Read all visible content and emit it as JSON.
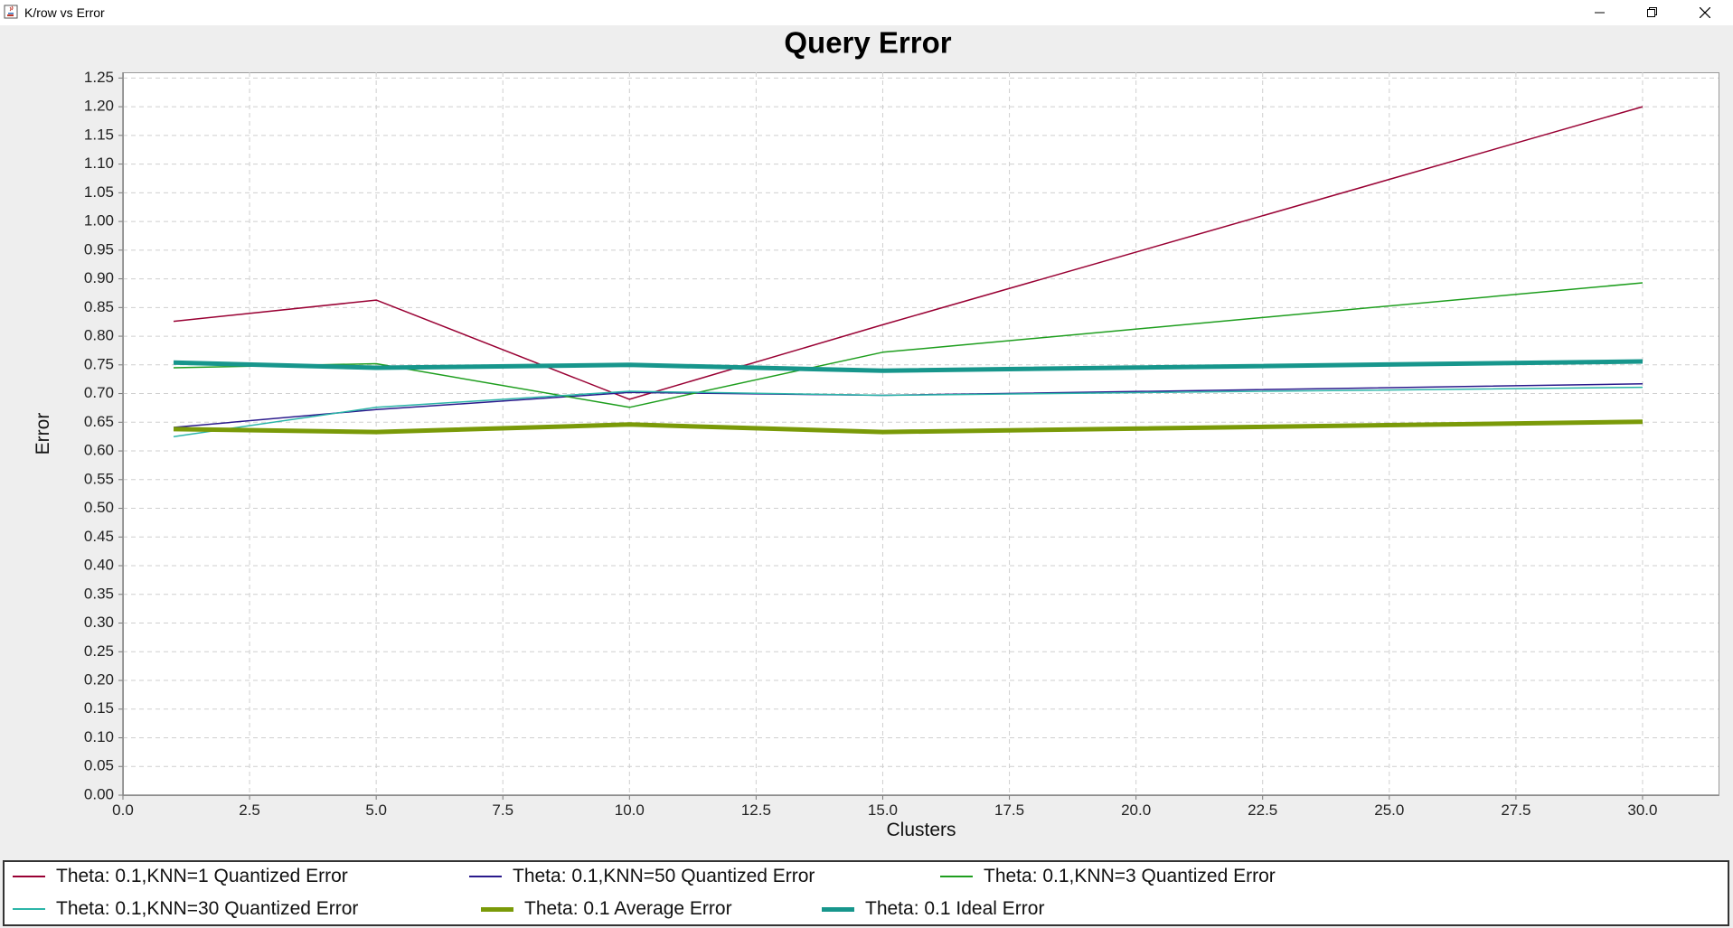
{
  "window": {
    "title": "K/row vs Error"
  },
  "chart_data": {
    "type": "line",
    "title": "Query Error",
    "xlabel": "Clusters",
    "ylabel": "Error",
    "xlim": [
      0,
      31.5
    ],
    "ylim": [
      0,
      1.26
    ],
    "xticks": [
      "0.0",
      "2.5",
      "5.0",
      "7.5",
      "10.0",
      "12.5",
      "15.0",
      "17.5",
      "20.0",
      "22.5",
      "25.0",
      "27.5",
      "30.0"
    ],
    "yticks": [
      "0.00",
      "0.05",
      "0.10",
      "0.15",
      "0.20",
      "0.25",
      "0.30",
      "0.35",
      "0.40",
      "0.45",
      "0.50",
      "0.55",
      "0.60",
      "0.65",
      "0.70",
      "0.75",
      "0.80",
      "0.85",
      "0.90",
      "0.95",
      "1.00",
      "1.05",
      "1.10",
      "1.15",
      "1.20",
      "1.25"
    ],
    "grid": true,
    "legend_position": "bottom",
    "x": [
      1,
      5,
      10,
      15,
      30
    ],
    "series": [
      {
        "name": "Theta: 0.1,KNN=1 Quantized Error",
        "color": "#990033",
        "width": 1.5,
        "values": [
          0.826,
          0.863,
          0.69,
          0.82,
          1.2
        ]
      },
      {
        "name": "Theta: 0.1,KNN=50 Quantized Error",
        "color": "#2a1a8c",
        "width": 1.5,
        "values": [
          0.641,
          0.672,
          0.702,
          0.697,
          0.717
        ]
      },
      {
        "name": "Theta: 0.1,KNN=3 Quantized Error",
        "color": "#1e9e1e",
        "width": 1.5,
        "values": [
          0.745,
          0.752,
          0.676,
          0.772,
          0.893
        ]
      },
      {
        "name": "Theta: 0.1,KNN=30 Quantized Error",
        "color": "#2bb5a8",
        "width": 1.5,
        "values": [
          0.625,
          0.676,
          0.704,
          0.697,
          0.711
        ]
      },
      {
        "name": "Theta: 0.1 Average Error",
        "color": "#7a9a08",
        "width": 5,
        "values": [
          0.638,
          0.633,
          0.646,
          0.633,
          0.651
        ]
      },
      {
        "name": "Theta: 0.1 Ideal Error",
        "color": "#17968c",
        "width": 5,
        "values": [
          0.754,
          0.745,
          0.75,
          0.74,
          0.756
        ]
      }
    ]
  }
}
